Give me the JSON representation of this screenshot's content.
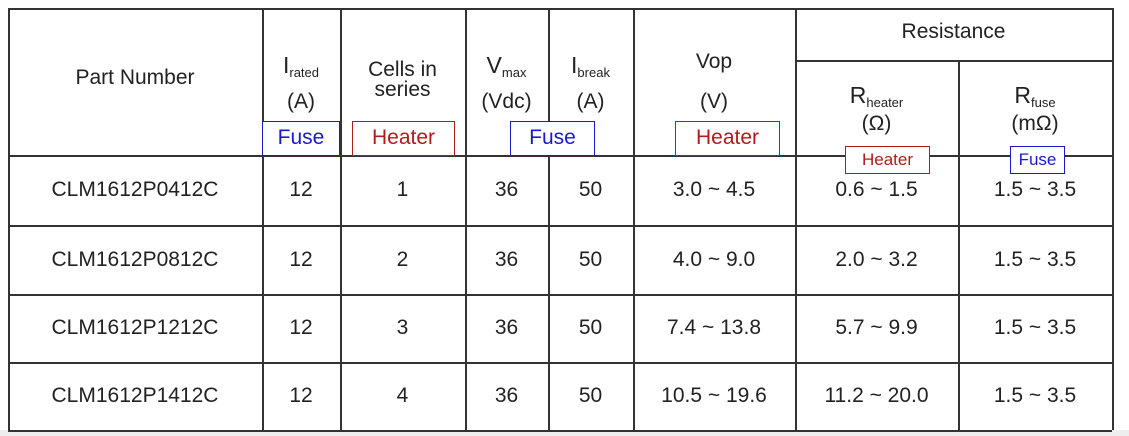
{
  "table": {
    "header": {
      "part_number": "Part Number",
      "i_rated": {
        "symbol": "I",
        "sub": "rated",
        "unit": "(A)"
      },
      "cells": [
        "Cells in",
        "series"
      ],
      "v_max": {
        "symbol": "V",
        "sub": "max",
        "unit": "(Vdc)"
      },
      "i_break": {
        "symbol": "I",
        "sub": "break",
        "unit": "(A)"
      },
      "vop": {
        "symbol": "Vop",
        "unit": "(V)"
      },
      "resistance": "Resistance",
      "r_heater": {
        "symbol": "R",
        "sub": "heater",
        "unit": "(Ω)"
      },
      "r_fuse": {
        "symbol": "R",
        "sub": "fuse",
        "unit": "(mΩ)"
      }
    },
    "tags": [
      {
        "label": "Fuse",
        "color": "#1a1acc"
      },
      {
        "label": "Heater",
        "color": "#b01c1c"
      },
      {
        "label": "Fuse",
        "color": "#1a1acc"
      },
      {
        "label": "Heater",
        "color": "#b01c1c"
      },
      {
        "label": "Heater",
        "color": "#b01c1c"
      },
      {
        "label": "Fuse",
        "color": "#1a1acc"
      }
    ],
    "rows": [
      [
        "CLM1612P0412C",
        "12",
        "1",
        "36",
        "50",
        "3.0 ~ 4.5",
        "0.6 ~ 1.5",
        "1.5 ~ 3.5"
      ],
      [
        "CLM1612P0812C",
        "12",
        "2",
        "36",
        "50",
        "4.0 ~ 9.0",
        "2.0 ~ 3.2",
        "1.5 ~ 3.5"
      ],
      [
        "CLM1612P1212C",
        "12",
        "3",
        "36",
        "50",
        "7.4 ~ 13.8",
        "5.7 ~ 9.9",
        "1.5 ~ 3.5"
      ],
      [
        "CLM1612P1412C",
        "12",
        "4",
        "36",
        "50",
        "10.5 ~ 19.6",
        "11.2 ~ 20.0",
        "1.5 ~ 3.5"
      ]
    ]
  }
}
